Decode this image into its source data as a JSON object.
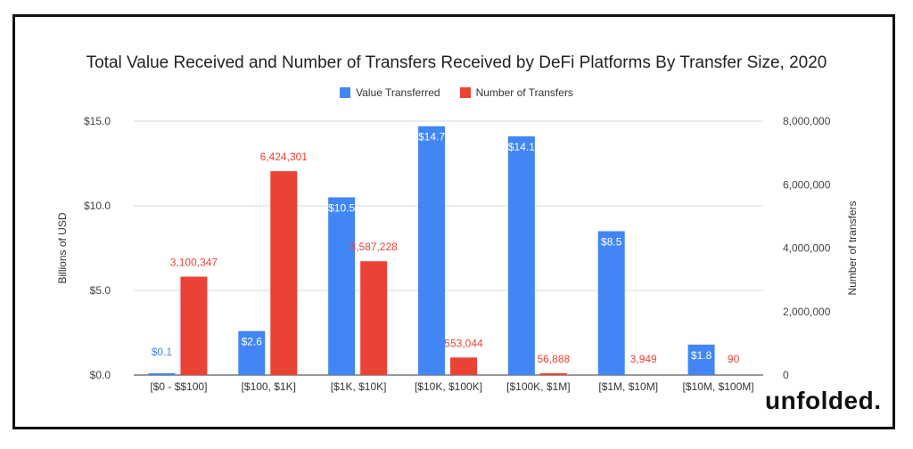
{
  "chart_data": {
    "type": "bar",
    "title": "Total Value Received and Number of Transfers Received by DeFi Platforms By Transfer Size, 2020",
    "categories": [
      "[$0 - $$100]",
      "[$100, $1K]",
      "[$1K, $10K]",
      "[$10K, $100K]",
      "[$100K, $1M]",
      "[$1M, $10M]",
      "[$10M, $100M]"
    ],
    "series": [
      {
        "name": "Value Transferred",
        "axis": "left",
        "color": "#4285f4",
        "values": [
          0.1,
          2.6,
          10.5,
          14.7,
          14.1,
          8.5,
          1.8
        ],
        "labels": [
          "$0.1",
          "$2.6",
          "$10.5",
          "$14.7",
          "$14.1",
          "$8.5",
          "$1.8"
        ],
        "label_color": "#4285f4",
        "label_color_inside": "#ffffff"
      },
      {
        "name": "Number of Transfers",
        "axis": "right",
        "color": "#ea4335",
        "values": [
          3100347,
          6424301,
          3587228,
          553044,
          56888,
          3949,
          90
        ],
        "labels": [
          "3,100,347",
          "6,424,301",
          "3,587,228",
          "553,044",
          "56,888",
          "3,949",
          "90"
        ],
        "label_color": "#ea4335"
      }
    ],
    "ylabel": "Billions of USD",
    "y2label": "Number of transfers",
    "ylim": [
      0,
      15
    ],
    "y2lim": [
      0,
      8000000
    ],
    "yticks": [
      "$0.0",
      "$5.0",
      "$10.0",
      "$15.0"
    ],
    "ytick_values": [
      0,
      5,
      10,
      15
    ],
    "y2ticks": [
      "0",
      "2,000,000",
      "4,000,000",
      "6,000,000",
      "8,000,000"
    ],
    "y2tick_values": [
      0,
      2000000,
      4000000,
      6000000,
      8000000
    ],
    "grid": true,
    "legend_position": "top-center"
  },
  "brand": "unfolded."
}
